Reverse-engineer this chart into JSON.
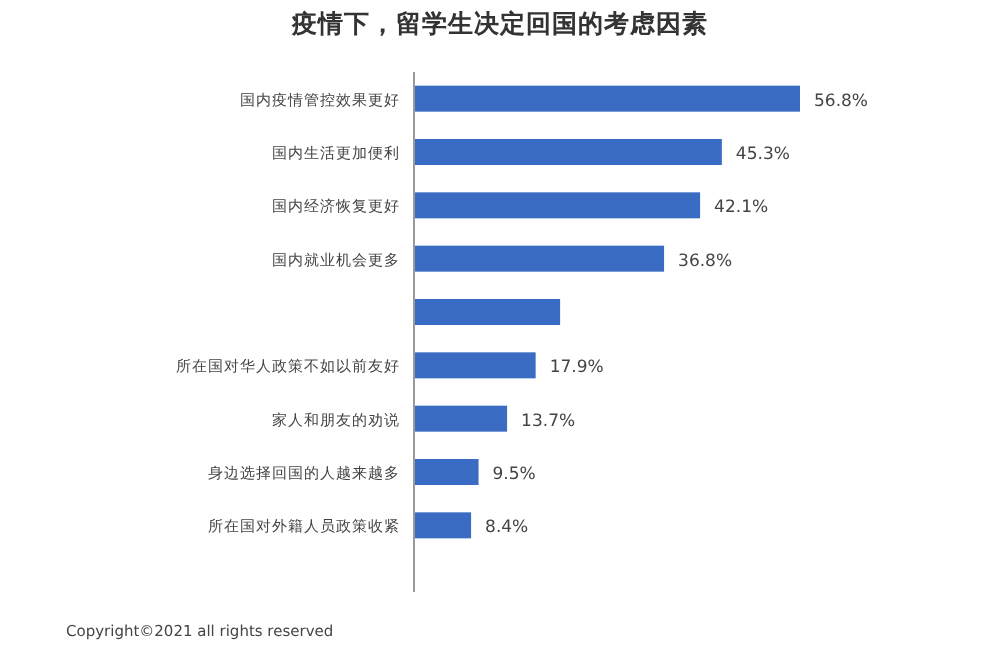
{
  "chart_data": {
    "type": "bar",
    "orientation": "horizontal",
    "title": "疫情下，留学生决定回国的考虑因素",
    "categories": [
      "国内疫情管控效果更好",
      "国内生活更加便利",
      "国内经济恢复更好",
      "国内就业机会更多",
      null,
      "所在国对华人政策不如以前友好",
      "家人和朋友的劝说",
      "身边选择回国的人越来越多",
      "所在国对外籍人员政策收紧"
    ],
    "values": [
      56.8,
      45.3,
      42.1,
      36.8,
      21.5,
      17.9,
      13.7,
      9.5,
      8.4
    ],
    "value_labels": [
      "56.8%",
      "45.3%",
      "42.1%",
      "36.8%",
      null,
      "17.9%",
      "13.7%",
      "9.5%",
      "8.4%"
    ],
    "color": "#3b6cc4",
    "annotations": [
      "Copyright©2021 all rights reserved"
    ]
  }
}
